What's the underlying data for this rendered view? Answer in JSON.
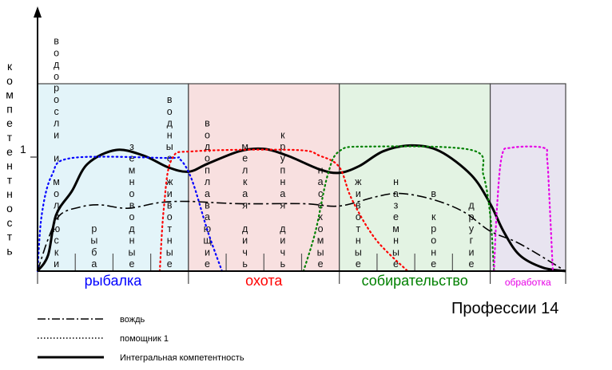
{
  "chart_data": {
    "type": "line",
    "title": "Профессии 14",
    "ylabel": "компетентность",
    "y_tick_label": "1",
    "xlim": [
      0,
      14
    ],
    "ylim": [
      0,
      1.64
    ],
    "sections": [
      {
        "name": "рыбалка",
        "range": [
          0,
          4
        ],
        "color": "#0000ff",
        "bg": "#e3f4f9",
        "subcategories": [
          "водоросли и моллюски",
          "рыба",
          "земноводные",
          "водные животные"
        ]
      },
      {
        "name": "охота",
        "range": [
          4,
          8
        ],
        "color": "#ff0000",
        "bg": "#f8e0e0",
        "subcategories": [
          "водоплавающие",
          "мелкая дичь",
          "крупная дичь",
          "насекомые"
        ]
      },
      {
        "name": "собирательство",
        "range": [
          8,
          12
        ],
        "color": "#008000",
        "bg": "#e3f3e3",
        "subcategories": [
          "животные",
          "наземные",
          "в кроне",
          "другие"
        ]
      },
      {
        "name": "обработка",
        "range": [
          12,
          14
        ],
        "color": "#e600e6",
        "bg": "#e8e4f0",
        "subcategories": []
      }
    ],
    "series": [
      {
        "name": "Интегральная компетентность",
        "style": "solid",
        "color": "#000000",
        "x": [
          0,
          0.28,
          0.49,
          0.91,
          1.33,
          2.08,
          2.82,
          3.45,
          4.0,
          4.51,
          5.36,
          5.99,
          6.63,
          7.48,
          8.0,
          8.53,
          9.17,
          9.92,
          10.66,
          11.5,
          12.0,
          12.35,
          12.78,
          13.4,
          14
        ],
        "y": [
          0,
          0.14,
          0.49,
          0.7,
          0.94,
          1.06,
          1.01,
          0.91,
          0.87,
          0.94,
          1.05,
          1.07,
          1.01,
          0.89,
          0.86,
          0.92,
          1.05,
          1.1,
          1.05,
          0.84,
          0.59,
          0.35,
          0.14,
          0.03,
          0
        ]
      },
      {
        "name": "вождь",
        "style": "dashdot",
        "color": "#000000",
        "x": [
          0,
          0.28,
          0.59,
          1.12,
          1.65,
          2.39,
          3.24,
          4.0,
          5.36,
          7.05,
          8.0,
          8.96,
          9.6,
          10.45,
          11.29,
          12.0,
          12.78,
          14
        ],
        "y": [
          0,
          0.28,
          0.49,
          0.56,
          0.58,
          0.55,
          0.6,
          0.61,
          0.59,
          0.59,
          0.57,
          0.65,
          0.68,
          0.63,
          0.52,
          0.35,
          0.24,
          0
        ]
      },
      {
        "name": "помощник 1",
        "style": "dotted",
        "segments": [
          {
            "color": "#0000ff",
            "x": [
              0,
              0.11,
              0.38,
              0.91,
              3.45,
              3.77,
              4.09,
              4.51,
              4.89
            ],
            "y": [
              0,
              0.49,
              0.84,
              0.99,
              0.99,
              0.98,
              0.8,
              0.35,
              0
            ]
          },
          {
            "color": "#ff0000",
            "x": [
              3.24,
              3.35,
              3.56,
              4.2,
              6.84,
              7.48,
              8.0,
              8.33,
              8.96,
              9.81
            ],
            "y": [
              0,
              0.56,
              0.98,
              1.05,
              1.06,
              1.01,
              0.91,
              0.63,
              0.28,
              0
            ]
          },
          {
            "color": "#008000",
            "x": [
              7.05,
              7.37,
              7.69,
              8.0,
              8.75,
              11.5,
              11.82,
              12.0,
              12.1
            ],
            "y": [
              0,
              0.35,
              0.84,
              1.05,
              1.09,
              1.06,
              0.84,
              0.49,
              0
            ]
          },
          {
            "color": "#e600e6",
            "x": [
              12.1,
              12.18,
              12.31,
              12.56,
              13.41,
              13.51,
              13.58,
              13.66
            ],
            "y": [
              0,
              0.56,
              1.01,
              1.08,
              1.08,
              0.98,
              0.56,
              0
            ]
          }
        ]
      }
    ],
    "legend": [
      {
        "label": "вождь",
        "style": "dashdot"
      },
      {
        "label": "помощник 1",
        "style": "dotted"
      },
      {
        "label": "Интегральная компетентность",
        "style": "solid"
      }
    ]
  }
}
